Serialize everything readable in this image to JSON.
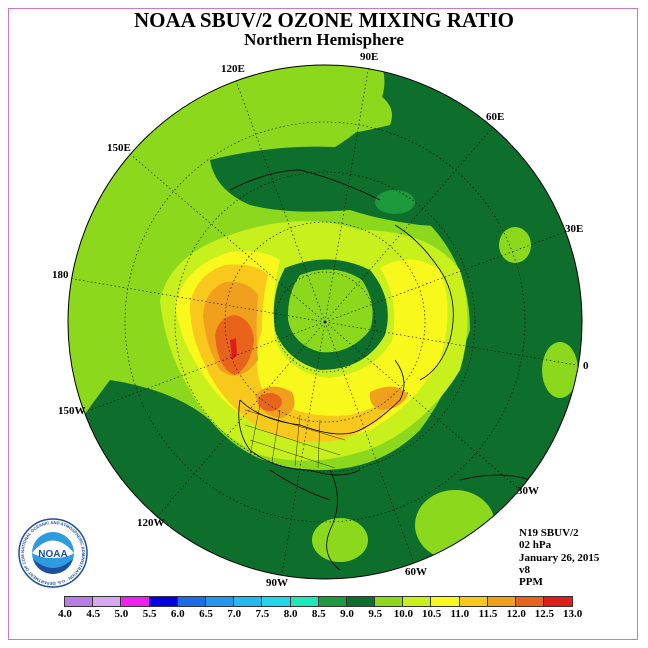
{
  "title": "NOAA SBUV/2 OZONE MIXING RATIO",
  "subtitle": "Northern Hemisphere",
  "longitude_labels": [
    "90E",
    "60E",
    "30E",
    "0",
    "30W",
    "60W",
    "90W",
    "120W",
    "150W",
    "180",
    "150E",
    "120E"
  ],
  "info": {
    "instrument": "N19 SBUV/2",
    "pressure": "02 hPa",
    "date": "January 26, 2015",
    "version": "v8",
    "units": "PPM"
  },
  "logo": {
    "text": "NOAA",
    "ring_text": "NATIONAL OCEANIC AND ATMOSPHERIC ADMINISTRATION · U.S. DEPARTMENT OF COMMERCE"
  },
  "colorbar": {
    "labels": [
      "4.0",
      "4.5",
      "5.0",
      "5.5",
      "6.0",
      "6.5",
      "7.0",
      "7.5",
      "8.0",
      "8.5",
      "9.0",
      "9.5",
      "10.0",
      "10.5",
      "11.0",
      "11.5",
      "12.0",
      "12.5",
      "13.0"
    ],
    "colors": [
      "#b77fe6",
      "#d7a8f0",
      "#ee22ee",
      "#0000e0",
      "#1c6ee8",
      "#2496ee",
      "#22b8f0",
      "#22d8e8",
      "#1ee8b8",
      "#1c9a3c",
      "#0e6e2c",
      "#8cd81c",
      "#c8f01c",
      "#f8f81c",
      "#f8c81c",
      "#f0a01c",
      "#e8641c",
      "#e01c1c",
      "#8c5a3c"
    ]
  },
  "colors": {
    "c_8_5": "#1c9a3c",
    "c_9_0": "#0e6e2c",
    "c_9_5": "#8cd81c",
    "c_10_0": "#c8f01c",
    "c_10_5": "#f8f81c",
    "c_11_0": "#f8c81c",
    "c_11_5": "#f0a01c",
    "c_12_0": "#e8641c",
    "c_12_5": "#e01c1c",
    "logo_blue": "#1e4f9e",
    "logo_sky": "#2e9ae0"
  }
}
